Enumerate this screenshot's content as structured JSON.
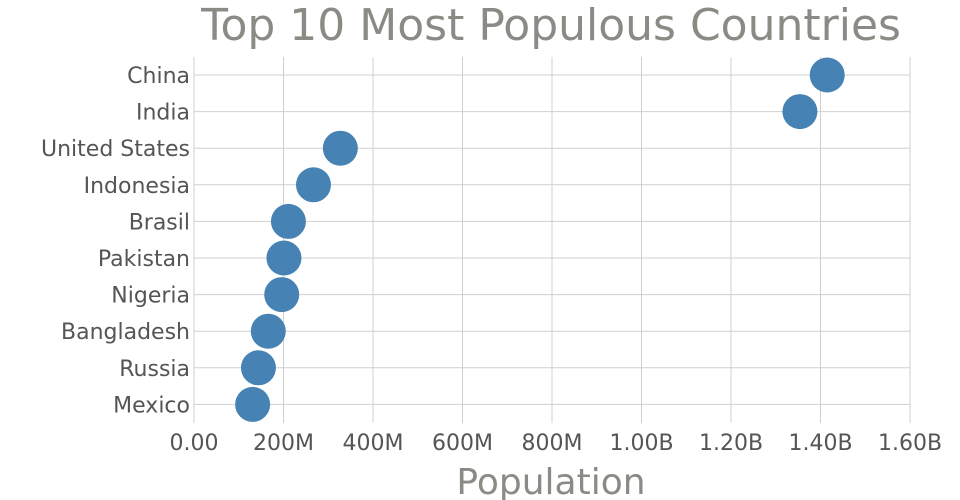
{
  "chart_data": {
    "type": "scatter",
    "title": "Top 10 Most Populous Countries",
    "xlabel": "Population",
    "ylabel": "",
    "xlim": [
      0,
      1600000000
    ],
    "x_ticks": [
      0,
      200000000,
      400000000,
      600000000,
      800000000,
      1000000000,
      1200000000,
      1400000000,
      1600000000
    ],
    "x_tick_labels": [
      "0.00",
      "200M",
      "400M",
      "600M",
      "800M",
      "1.00B",
      "1.20B",
      "1.40B",
      "1.60B"
    ],
    "grid": true,
    "color": "#4682b4",
    "categories": [
      "China",
      "India",
      "United States",
      "Indonesia",
      "Brasil",
      "Pakistan",
      "Nigeria",
      "Bangladesh",
      "Russia",
      "Mexico"
    ],
    "values": [
      1415000000,
      1354000000,
      327000000,
      267000000,
      211000000,
      201000000,
      196000000,
      166000000,
      144000000,
      131000000
    ]
  }
}
